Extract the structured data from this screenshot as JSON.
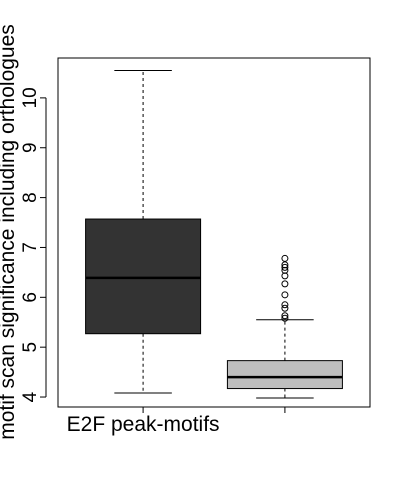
{
  "chart_data": {
    "type": "boxplot",
    "title": "",
    "xlabel": "",
    "ylabel": "motif scan significance including orthologues",
    "ylim": [
      3.8,
      10.8
    ],
    "yticks": [
      4,
      5,
      6,
      7,
      8,
      9,
      10
    ],
    "grid": false,
    "legend": "none",
    "categories": [
      "E2F peak-motifs",
      ""
    ],
    "boxes": [
      {
        "category": "E2F peak-motifs",
        "fill": "#333333",
        "whisker_low": 4.08,
        "q1": 5.27,
        "median": 6.39,
        "q3": 7.57,
        "whisker_high": 10.55,
        "outliers": []
      },
      {
        "category": "",
        "fill": "#bebebe",
        "whisker_low": 3.98,
        "q1": 4.17,
        "median": 4.4,
        "q3": 4.73,
        "whisker_high": 5.55,
        "outliers": [
          5.58,
          5.63,
          5.78,
          5.85,
          6.05,
          6.27,
          6.43,
          6.54,
          6.6,
          6.65,
          6.78
        ]
      }
    ]
  }
}
